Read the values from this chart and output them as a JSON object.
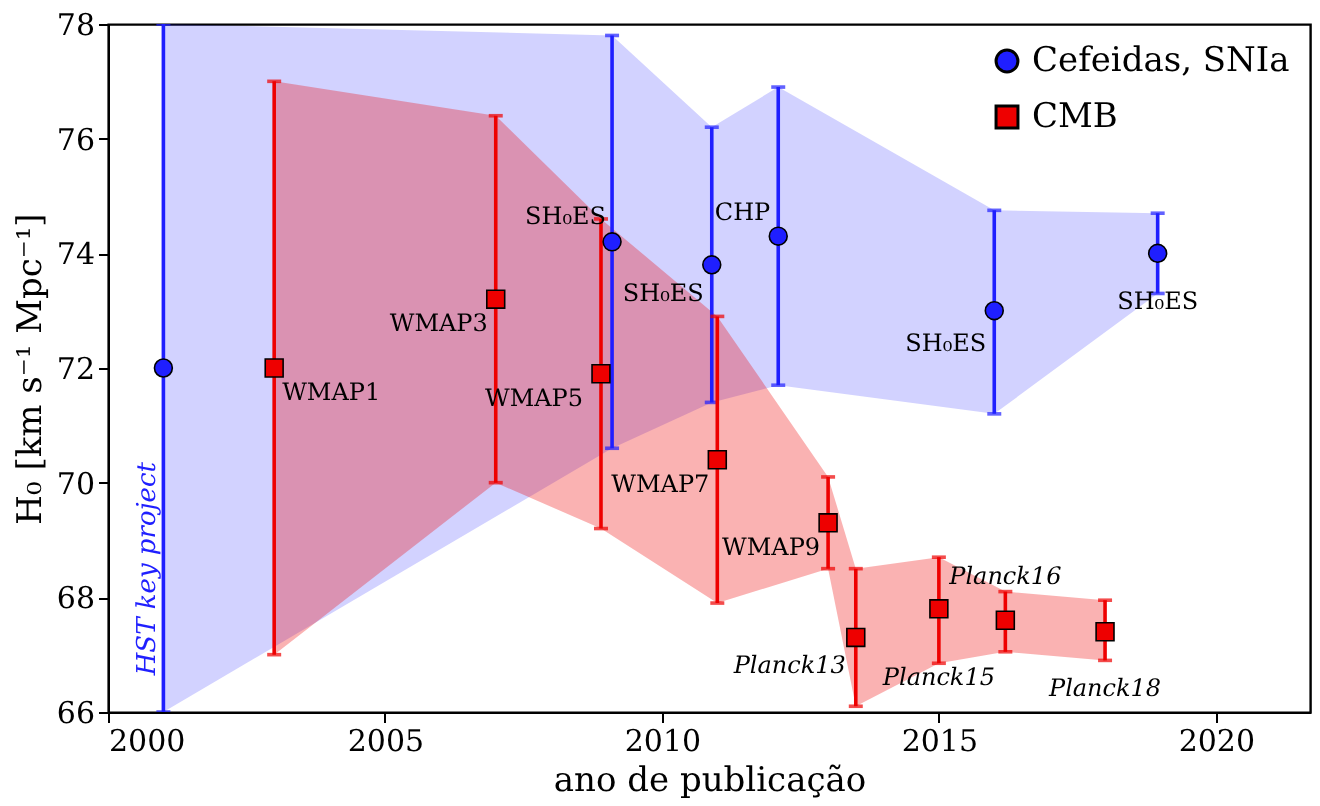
{
  "chart_data": {
    "type": "scatter",
    "xlabel": "ano de publicação",
    "ylabel": "H₀ [km s⁻¹ Mpc⁻¹]",
    "xlim": [
      2000,
      2021.7
    ],
    "xticks": [
      2000,
      2005,
      2010,
      2015,
      2020
    ],
    "ylim": [
      66,
      78
    ],
    "yticks": [
      66,
      68,
      70,
      72,
      74,
      76,
      78
    ],
    "grid": false,
    "legend": "top right",
    "series": [
      {
        "name": "Cefeidas, SNIa",
        "color": "#1f1fff",
        "marker": "circle",
        "x": [
          2001,
          2009.1,
          2010.9,
          2012.1,
          2016.0,
          2018.95
        ],
        "values": [
          72,
          74.2,
          73.8,
          74.3,
          73.0,
          74.0
        ],
        "errors": [
          [
            66,
            78
          ],
          [
            70.6,
            77.8
          ],
          [
            71.4,
            76.2
          ],
          [
            71.7,
            76.9
          ],
          [
            71.2,
            74.75
          ],
          [
            73.3,
            74.7
          ]
        ],
        "lower": [
          66,
          70.6,
          71.4,
          71.7,
          71.2,
          73.3
        ],
        "upper": [
          78,
          77.8,
          76.2,
          76.9,
          74.75,
          74.7
        ]
      },
      {
        "name": "CMB",
        "color": "#ee0000",
        "marker": "square",
        "x": [
          2003,
          2007,
          2008.9,
          2011,
          2013,
          2013.5,
          2015,
          2016.2,
          2018
        ],
        "values": [
          72,
          73.2,
          71.9,
          70.4,
          69.3,
          67.3,
          67.8,
          67.6,
          67.4
        ],
        "errors": [
          [
            67,
            77
          ],
          [
            70.0,
            76.4
          ],
          [
            69.2,
            74.6
          ],
          [
            67.9,
            72.9
          ],
          [
            68.5,
            70.1
          ],
          [
            66.1,
            68.5
          ],
          [
            66.85,
            68.7
          ],
          [
            67.05,
            68.1
          ],
          [
            66.9,
            67.95
          ]
        ],
        "lower": [
          67,
          70.0,
          69.2,
          67.9,
          68.5,
          66.1,
          66.85,
          67.05,
          66.9
        ],
        "upper": [
          77,
          76.4,
          74.6,
          72.9,
          70.1,
          68.5,
          68.7,
          68.1,
          67.95
        ]
      }
    ],
    "annotations": [
      {
        "text": "HST key project",
        "x": 2001,
        "y": 68.5
      },
      {
        "text": "WMAP1",
        "x": 2003,
        "y": 72
      },
      {
        "text": "WMAP3",
        "x": 2007,
        "y": 73.2
      },
      {
        "text": "SH₀ES",
        "x": 2009.1,
        "y": 74.2
      },
      {
        "text": "WMAP5",
        "x": 2008.9,
        "y": 71.9
      },
      {
        "text": "SH₀ES",
        "x": 2010.9,
        "y": 73.8
      },
      {
        "text": "WMAP7",
        "x": 2011,
        "y": 70.4
      },
      {
        "text": "CHP",
        "x": 2012.1,
        "y": 74.3
      },
      {
        "text": "WMAP9",
        "x": 2013,
        "y": 69.3
      },
      {
        "text": "SH₀ES",
        "x": 2016.0,
        "y": 73.0
      },
      {
        "text": "SH₀ES",
        "x": 2018.95,
        "y": 74.0
      },
      {
        "text": "Planck13",
        "x": 2013.5,
        "y": 67.3
      },
      {
        "text": "Planck15",
        "x": 2015,
        "y": 67.8
      },
      {
        "text": "Planck16",
        "x": 2016.2,
        "y": 67.6
      },
      {
        "text": "Planck18",
        "x": 2018,
        "y": 67.4
      }
    ]
  }
}
